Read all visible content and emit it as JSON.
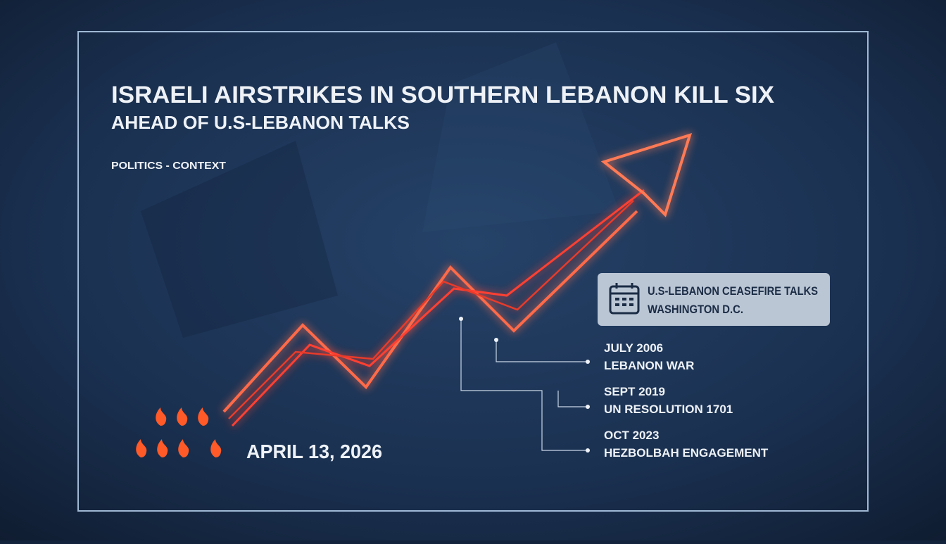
{
  "header": {
    "title": "ISRAELI AIRSTRIKES IN SOUTHERN LEBANON KILL SIX",
    "subtitle": "AHEAD OF U.S-LEBANON TALKS",
    "tag": "POLITICS - CONTEXT"
  },
  "date": "APRIL 13, 2026",
  "callout": {
    "line1": "U.S-LEBANON CEASEFIRE TALKS",
    "line2": "WASHINGTON D.C."
  },
  "timeline": [
    {
      "date": "JULY 2006",
      "label": "LEBANON WAR"
    },
    {
      "date": "SEPT 2019",
      "label": "UN RESOLUTION 1701"
    },
    {
      "date": "OCT 2023",
      "label": "HEZBOLBAH ENGAGEMENT"
    }
  ]
}
